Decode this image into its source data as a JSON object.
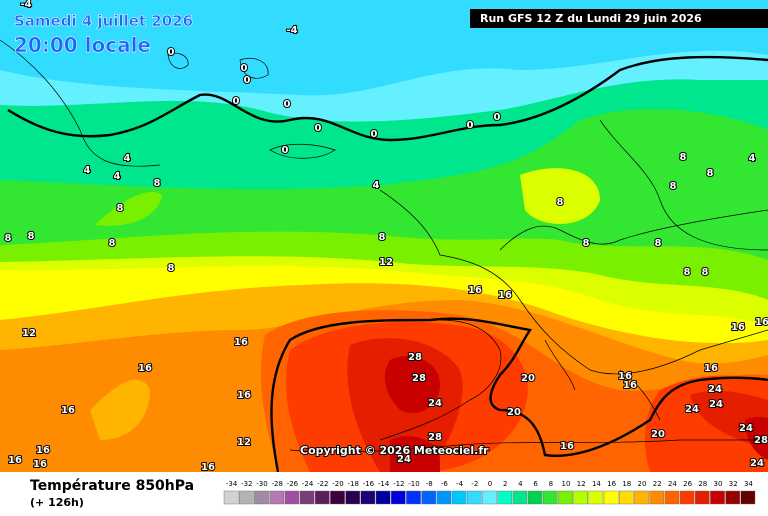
{
  "header": {
    "date": "Samedi 4 juillet 2026",
    "time": "20:00 locale",
    "run": "Run GFS 12 Z du Lundi 29 juin 2026"
  },
  "copyright": "Copyright © 2026 Meteociel.fr",
  "footer": {
    "title": "Température 850hPa",
    "lead": "(+ 126h)"
  },
  "scale": {
    "values": [
      -34,
      -32,
      -30,
      -28,
      -26,
      -24,
      -22,
      -20,
      -18,
      -16,
      -14,
      -12,
      -10,
      -8,
      -6,
      -4,
      -2,
      0,
      2,
      4,
      6,
      8,
      10,
      12,
      14,
      16,
      18,
      20,
      22,
      24,
      26,
      28,
      30,
      32,
      34
    ],
    "colors": [
      "#d2d2d2",
      "#b4b4b4",
      "#a08ca0",
      "#b478b4",
      "#a050a0",
      "#783c78",
      "#5a1e5a",
      "#3c003c",
      "#280050",
      "#1e0078",
      "#0000a0",
      "#0000dc",
      "#0032ff",
      "#0064ff",
      "#0096ff",
      "#00c8ff",
      "#32dcff",
      "#64f0ff",
      "#00ffc8",
      "#00e68c",
      "#00d250",
      "#32e632",
      "#78f000",
      "#b4ff00",
      "#dcff00",
      "#ffff00",
      "#ffdc00",
      "#ffb400",
      "#ff8c00",
      "#ff6400",
      "#ff3c00",
      "#e61e00",
      "#c80000",
      "#960000",
      "#640000"
    ]
  },
  "contour_labels": [
    -4,
    -4,
    0,
    0,
    0,
    0,
    0,
    0,
    0,
    0,
    0,
    0,
    4,
    4,
    4,
    8,
    8,
    4,
    8,
    8,
    8,
    8,
    8,
    12,
    12,
    16,
    16,
    16,
    16,
    16,
    16,
    12,
    16,
    16,
    16,
    16,
    28,
    28,
    24,
    28,
    24,
    20,
    20,
    16,
    20,
    16,
    16,
    16,
    24,
    24,
    24,
    24,
    28,
    24,
    16,
    16,
    8,
    8,
    4,
    8,
    8,
    8,
    8,
    8,
    8
  ]
}
